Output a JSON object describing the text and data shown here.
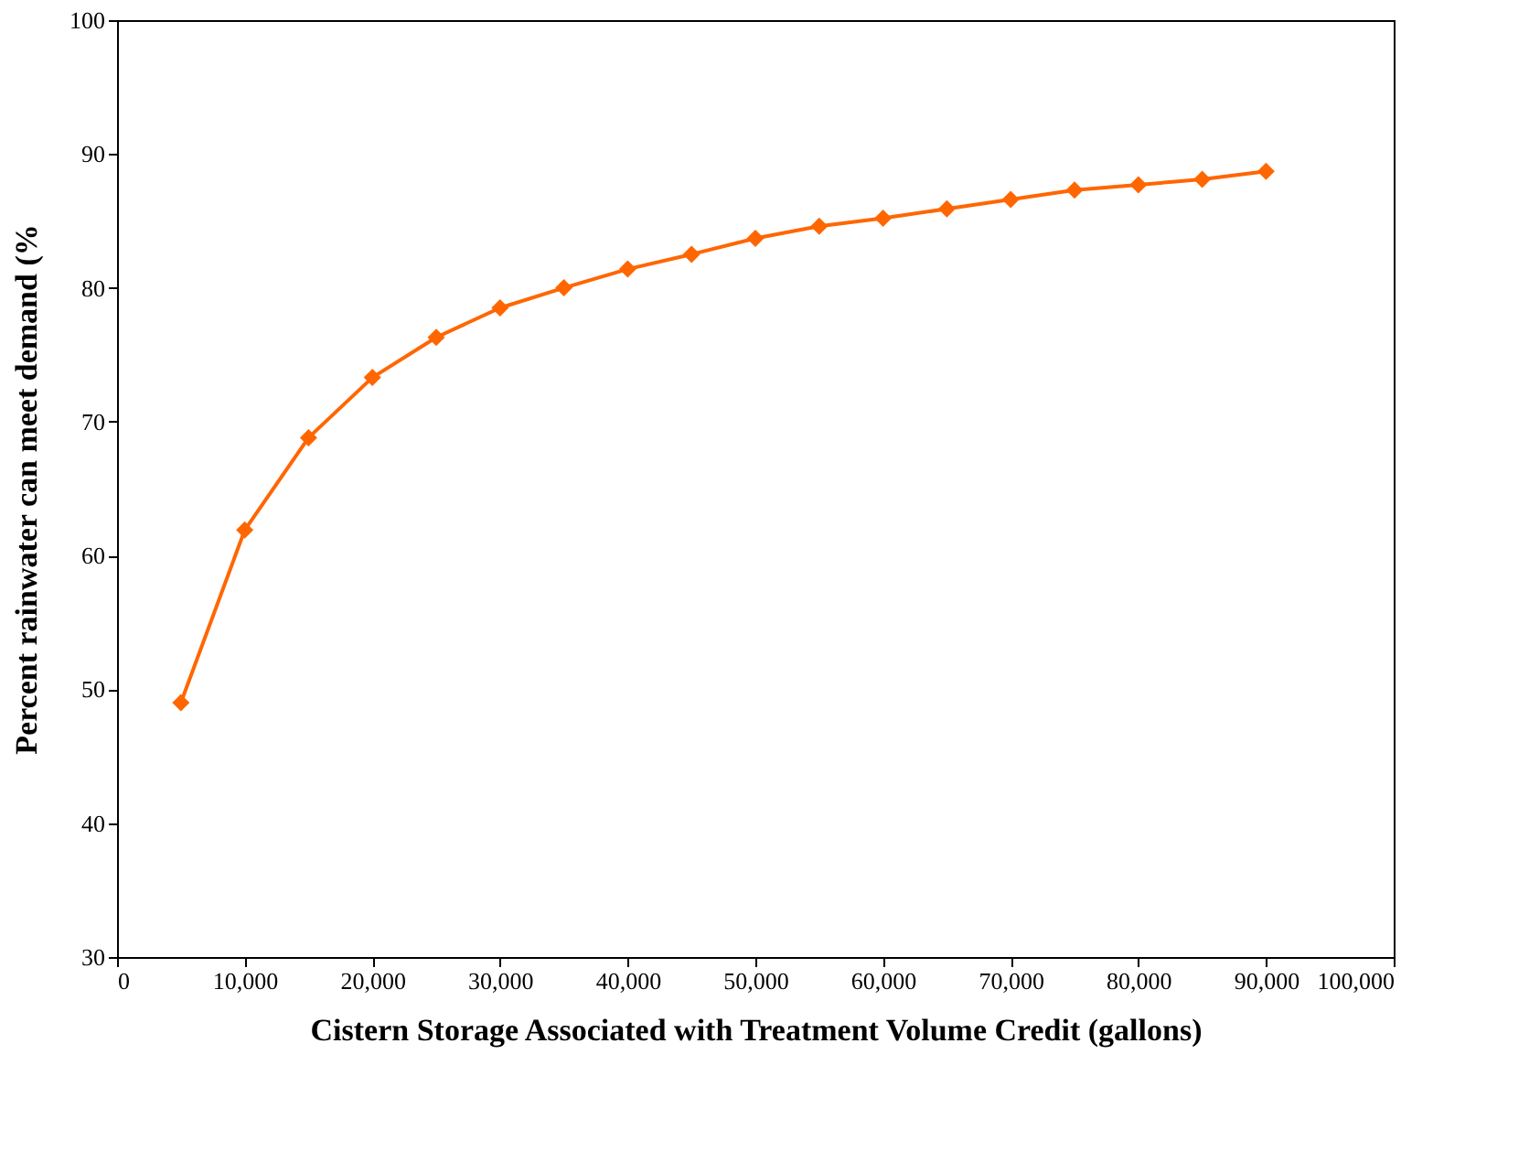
{
  "chart_data": {
    "type": "line",
    "xlabel": "Cistern Storage Associated with Treatment Volume Credit (gallons)",
    "ylabel": "Percent rainwater can meet demand (%",
    "x": [
      5000,
      10000,
      15000,
      20000,
      25000,
      30000,
      35000,
      40000,
      45000,
      50000,
      55000,
      60000,
      65000,
      70000,
      75000,
      80000,
      85000,
      90000
    ],
    "series": [
      {
        "color": "#ff6600",
        "values": [
          49.0,
          61.9,
          68.8,
          73.3,
          76.3,
          78.5,
          80.0,
          81.4,
          82.5,
          83.7,
          84.6,
          85.2,
          85.9,
          86.6,
          87.3,
          87.7,
          88.1,
          88.7
        ]
      }
    ],
    "xlim": [
      0,
      100000
    ],
    "xticks": [
      0,
      {
        "value": 10000,
        "label": "10,000"
      },
      {
        "value": 20000,
        "label": "20,000"
      },
      {
        "value": 30000,
        "label": "30,000"
      },
      {
        "value": 40000,
        "label": "40,000"
      },
      {
        "value": 50000,
        "label": "50,000"
      },
      {
        "value": 60000,
        "label": "60,000"
      },
      {
        "value": 70000,
        "label": "70,000"
      },
      {
        "value": 80000,
        "label": "80,000"
      },
      {
        "value": 90000,
        "label": "90,000"
      },
      {
        "value": 100000,
        "label": "100,000"
      }
    ],
    "ylim": [
      30,
      100
    ],
    "yticks": [
      30,
      40,
      50,
      60,
      70,
      80,
      90,
      100
    ],
    "grid": false,
    "marker": "diamond",
    "line_style": "solid"
  }
}
